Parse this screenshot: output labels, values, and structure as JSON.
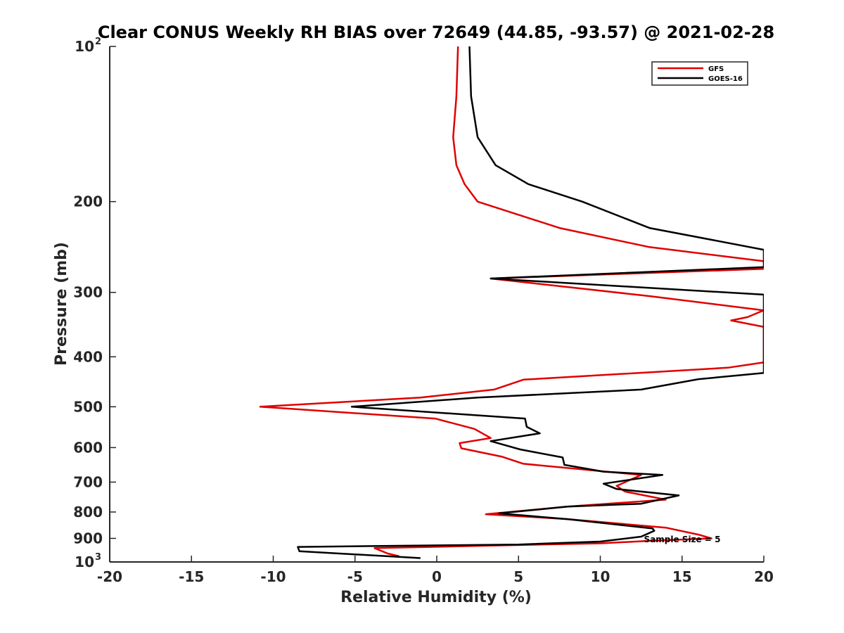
{
  "chart_data": {
    "type": "line",
    "title": "Clear CONUS Weekly RH BIAS over 72649 (44.85, -93.57) @ 2021-02-28",
    "xlabel": "Relative Humidity (%)",
    "ylabel": "Pressure (mb)",
    "xlim": [
      -20,
      20
    ],
    "ylim": [
      100,
      1000
    ],
    "yscale": "log",
    "y_reversed": true,
    "grid": false,
    "legend_position": "top-right",
    "x_ticks": [
      "-20",
      "-15",
      "-10",
      "-5",
      "0",
      "5",
      "10",
      "15",
      "20"
    ],
    "y_ticks": [
      {
        "value": 100,
        "label": "10",
        "exp": "2"
      },
      {
        "value": 200,
        "label": "200",
        "exp": ""
      },
      {
        "value": 300,
        "label": "300",
        "exp": ""
      },
      {
        "value": 400,
        "label": "400",
        "exp": ""
      },
      {
        "value": 500,
        "label": "500",
        "exp": ""
      },
      {
        "value": 600,
        "label": "600",
        "exp": ""
      },
      {
        "value": 700,
        "label": "700",
        "exp": ""
      },
      {
        "value": 800,
        "label": "800",
        "exp": ""
      },
      {
        "value": 900,
        "label": "900",
        "exp": ""
      },
      {
        "value": 1000,
        "label": "10",
        "exp": "3"
      }
    ],
    "annotation": "Sample Size = 5",
    "series": [
      {
        "name": "GFS",
        "color": "#e00000",
        "points": [
          [
            1.3,
            100
          ],
          [
            1.2,
            125
          ],
          [
            1.0,
            150
          ],
          [
            1.2,
            170
          ],
          [
            1.7,
            185
          ],
          [
            2.5,
            200
          ],
          [
            7.5,
            225
          ],
          [
            13.0,
            245
          ],
          [
            20.0,
            261
          ],
          [
            20.5,
            268
          ],
          [
            20.0,
            270
          ],
          [
            3.3,
            282
          ],
          [
            13.0,
            305
          ],
          [
            20.0,
            325
          ],
          [
            19.0,
            335
          ],
          [
            18.0,
            340
          ],
          [
            20.0,
            350
          ],
          [
            20.0,
            410
          ],
          [
            17.8,
            420
          ],
          [
            5.3,
            443
          ],
          [
            3.5,
            463
          ],
          [
            -1.0,
            480
          ],
          [
            -10.8,
            500
          ],
          [
            -0.1,
            527
          ],
          [
            2.3,
            552
          ],
          [
            3.3,
            575
          ],
          [
            1.4,
            588
          ],
          [
            1.5,
            602
          ],
          [
            4.0,
            625
          ],
          [
            5.3,
            645
          ],
          [
            12.5,
            678
          ],
          [
            11.0,
            712
          ],
          [
            11.5,
            730
          ],
          [
            14.0,
            757
          ],
          [
            8.0,
            781
          ],
          [
            3.0,
            808
          ],
          [
            8.0,
            826
          ],
          [
            14.0,
            858
          ],
          [
            16.0,
            885
          ],
          [
            16.8,
            900
          ],
          [
            13.0,
            910
          ],
          [
            10.0,
            920
          ],
          [
            3.0,
            930
          ],
          [
            -3.8,
            940
          ],
          [
            -3.0,
            963
          ],
          [
            -2.3,
            975
          ]
        ]
      },
      {
        "name": "GOES-16",
        "color": "#000000",
        "points": [
          [
            2.0,
            100
          ],
          [
            2.1,
            125
          ],
          [
            2.5,
            150
          ],
          [
            3.6,
            170
          ],
          [
            5.6,
            185
          ],
          [
            8.9,
            200
          ],
          [
            13.0,
            225
          ],
          [
            20.0,
            248
          ],
          [
            20.0,
            268
          ],
          [
            3.3,
            282
          ],
          [
            20.0,
            303
          ],
          [
            20.0,
            430
          ],
          [
            16.0,
            442
          ],
          [
            12.5,
            463
          ],
          [
            2.5,
            480
          ],
          [
            -5.2,
            500
          ],
          [
            5.4,
            527
          ],
          [
            5.5,
            547
          ],
          [
            6.3,
            563
          ],
          [
            3.3,
            583
          ],
          [
            5.1,
            605
          ],
          [
            7.7,
            627
          ],
          [
            7.8,
            648
          ],
          [
            10.2,
            668
          ],
          [
            13.8,
            678
          ],
          [
            10.2,
            705
          ],
          [
            11.0,
            722
          ],
          [
            14.8,
            743
          ],
          [
            12.5,
            771
          ],
          [
            8.0,
            781
          ],
          [
            3.8,
            805
          ],
          [
            8.0,
            826
          ],
          [
            13.2,
            861
          ],
          [
            13.3,
            870
          ],
          [
            12.5,
            893
          ],
          [
            10.0,
            913
          ],
          [
            5.0,
            925
          ],
          [
            -8.5,
            935
          ],
          [
            -8.4,
            953
          ],
          [
            -1.0,
            983
          ]
        ]
      }
    ]
  }
}
